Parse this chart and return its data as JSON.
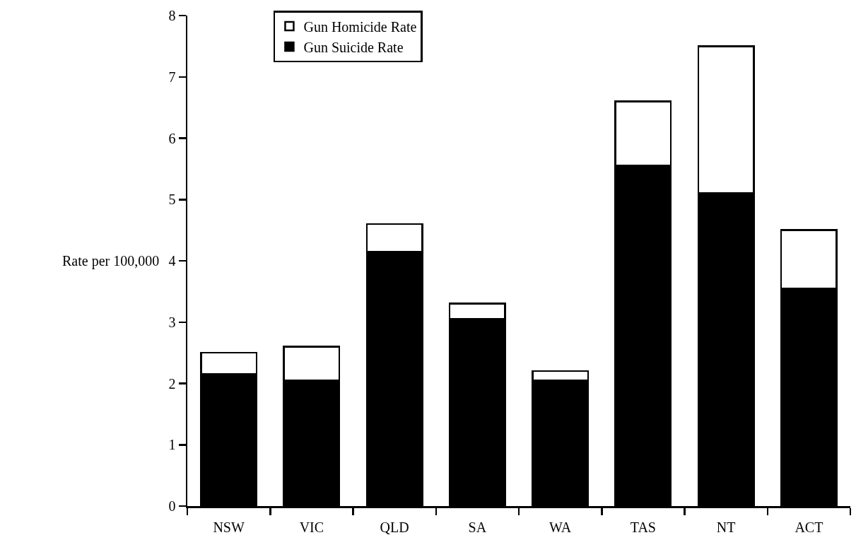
{
  "chart_data": {
    "type": "bar",
    "stacked": true,
    "ylabel": "Rate per 100,000",
    "categories": [
      "NSW",
      "VIC",
      "QLD",
      "SA",
      "WA",
      "TAS",
      "NT",
      "ACT"
    ],
    "series": [
      {
        "name": "Gun Suicide Rate",
        "color": "#000000",
        "values": [
          2.15,
          2.05,
          4.15,
          3.05,
          2.05,
          5.55,
          5.1,
          3.55
        ]
      },
      {
        "name": "Gun Homicide Rate",
        "color": "#ffffff",
        "values": [
          0.35,
          0.55,
          0.45,
          0.25,
          0.15,
          1.05,
          2.4,
          0.95
        ]
      }
    ],
    "ylim": [
      0,
      8
    ],
    "yticks": [
      0,
      1,
      2,
      3,
      4,
      5,
      6,
      7,
      8
    ],
    "grid": false,
    "legend": "top left"
  }
}
